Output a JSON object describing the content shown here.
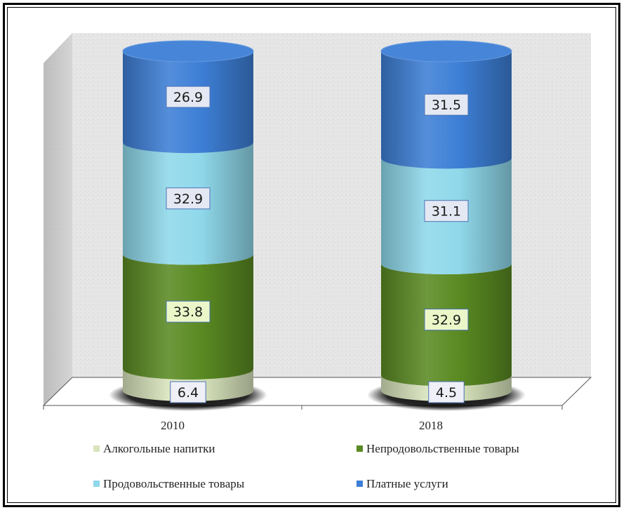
{
  "chart_data": {
    "type": "bar",
    "stacked": true,
    "categories": [
      "2010",
      "2018"
    ],
    "series": [
      {
        "name": "Алкогольные напитки",
        "values": [
          6.4,
          4.5
        ],
        "color": "#d8e4bc"
      },
      {
        "name": "Непродовольственные товары",
        "values": [
          33.8,
          32.9
        ],
        "color": "#5a8a22"
      },
      {
        "name": "Продовольственные товары",
        "values": [
          32.9,
          31.1
        ],
        "color": "#8fd8ea"
      },
      {
        "name": "Платные услуги",
        "values": [
          26.9,
          31.5
        ],
        "color": "#3d7fd6"
      }
    ],
    "ylim": [
      0,
      100
    ],
    "title": "",
    "xlabel": "",
    "ylabel": "",
    "legend_position": "bottom",
    "grid": false,
    "shape": "cylinder"
  }
}
